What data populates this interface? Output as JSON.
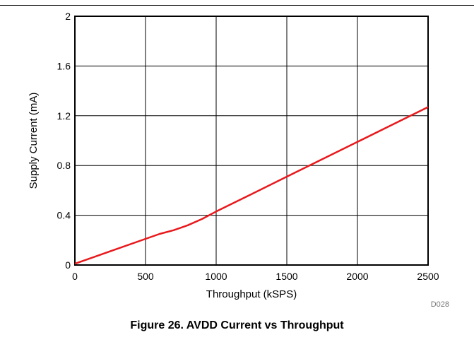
{
  "caption": "Figure 26. AVDD Current vs Throughput",
  "chart_data": {
    "type": "line",
    "xlabel": "Throughput (kSPS)",
    "ylabel": "Supply Current (mA)",
    "xlim": [
      0,
      2500
    ],
    "ylim": [
      0,
      2
    ],
    "x_ticks": [
      "0",
      "500",
      "1000",
      "1500",
      "2000",
      "2500"
    ],
    "y_ticks": [
      "0",
      "0.4",
      "0.8",
      "1.2",
      "1.6",
      "2"
    ],
    "grid": true,
    "code": "D028",
    "line_color": "#e8191c",
    "series": [
      {
        "x": [
          0,
          250,
          500,
          600,
          700,
          800,
          900,
          1000,
          1250,
          1500,
          1750,
          2000,
          2250,
          2500
        ],
        "values": [
          0.01,
          0.11,
          0.21,
          0.25,
          0.28,
          0.32,
          0.37,
          0.43,
          0.57,
          0.71,
          0.85,
          0.99,
          1.13,
          1.27
        ]
      }
    ]
  }
}
